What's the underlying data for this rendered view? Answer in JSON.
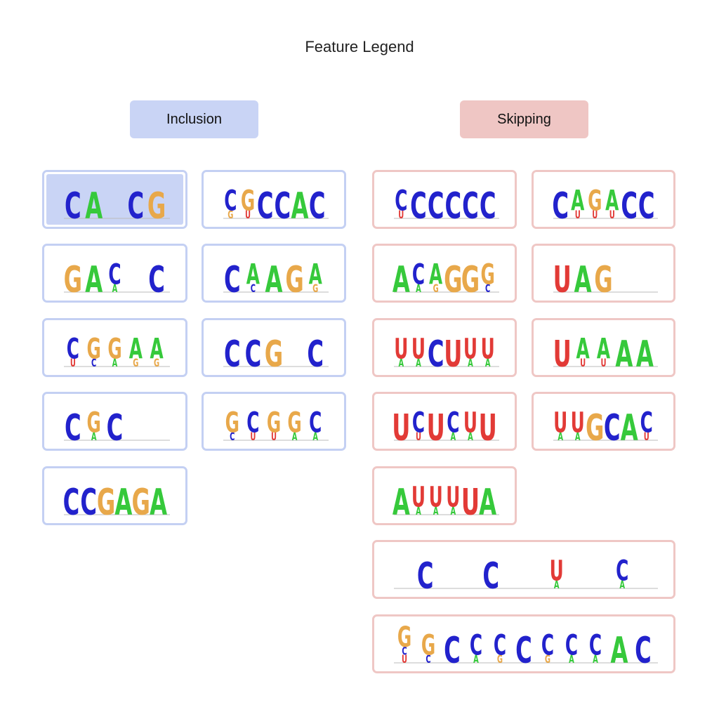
{
  "title": "Feature Legend",
  "groups": {
    "inclusion": {
      "label": "Inclusion",
      "header_color": "#c9d4f5",
      "border_color": "#c4d0f3",
      "selected_fill": "#c9d4f5"
    },
    "skipping": {
      "label": "Skipping",
      "header_color": "#efc6c4",
      "border_color": "#efc7c5",
      "selected_fill": "#efc6c4"
    }
  },
  "nucleotide_colors": {
    "A": "#36c93b",
    "C": "#2222cc",
    "G": "#e8a84a",
    "U": "#e23a36"
  },
  "motif_cards": [
    {
      "name": "inclusion-motif-1",
      "group": "inclusion",
      "selected": true,
      "positions": [
        [
          "C"
        ],
        [
          "A"
        ],
        [],
        [
          "C"
        ],
        [
          "G"
        ]
      ]
    },
    {
      "name": "inclusion-motif-2",
      "group": "inclusion",
      "selected": false,
      "positions": [
        [
          "C",
          "G"
        ],
        [
          "G",
          "U"
        ],
        [
          "C"
        ],
        [
          "C"
        ],
        [
          "A"
        ],
        [
          "C"
        ]
      ]
    },
    {
      "name": "inclusion-motif-3",
      "group": "inclusion",
      "selected": false,
      "positions": [
        [
          "G"
        ],
        [
          "A"
        ],
        [
          "C",
          "A"
        ],
        [],
        [
          "C"
        ]
      ]
    },
    {
      "name": "inclusion-motif-4",
      "group": "inclusion",
      "selected": false,
      "positions": [
        [
          "C"
        ],
        [
          "A",
          "C"
        ],
        [
          "A"
        ],
        [
          "G"
        ],
        [
          "A",
          "G"
        ]
      ]
    },
    {
      "name": "inclusion-motif-5",
      "group": "inclusion",
      "selected": false,
      "positions": [
        [
          "C",
          "U"
        ],
        [
          "G",
          "C"
        ],
        [
          "G",
          "A"
        ],
        [
          "A",
          "G"
        ],
        [
          "A",
          "G"
        ]
      ]
    },
    {
      "name": "inclusion-motif-6",
      "group": "inclusion",
      "selected": false,
      "positions": [
        [
          "C"
        ],
        [
          "C"
        ],
        [
          "G"
        ],
        [],
        [
          "C"
        ]
      ]
    },
    {
      "name": "inclusion-motif-7",
      "group": "inclusion",
      "selected": false,
      "positions": [
        [
          "C"
        ],
        [
          "G",
          "A"
        ],
        [
          "C"
        ],
        [],
        []
      ]
    },
    {
      "name": "inclusion-motif-8",
      "group": "inclusion",
      "selected": false,
      "positions": [
        [
          "G",
          "C"
        ],
        [
          "C",
          "U"
        ],
        [
          "G",
          "U"
        ],
        [
          "G",
          "A"
        ],
        [
          "C",
          "A"
        ]
      ]
    },
    {
      "name": "inclusion-motif-9",
      "group": "inclusion",
      "selected": false,
      "positions": [
        [
          "C"
        ],
        [
          "C"
        ],
        [
          "G"
        ],
        [
          "A"
        ],
        [
          "G"
        ],
        [
          "A"
        ]
      ]
    },
    {
      "name": "skipping-motif-1",
      "group": "skipping",
      "selected": false,
      "positions": [
        [
          "C",
          "U"
        ],
        [
          "C"
        ],
        [
          "C"
        ],
        [
          "C"
        ],
        [
          "C"
        ],
        [
          "C"
        ]
      ]
    },
    {
      "name": "skipping-motif-2",
      "group": "skipping",
      "selected": false,
      "positions": [
        [
          "C"
        ],
        [
          "A",
          "U"
        ],
        [
          "G",
          "U"
        ],
        [
          "A",
          "U"
        ],
        [
          "C"
        ],
        [
          "C"
        ]
      ]
    },
    {
      "name": "skipping-motif-3",
      "group": "skipping",
      "selected": false,
      "positions": [
        [
          "A"
        ],
        [
          "C",
          "A"
        ],
        [
          "A",
          "G"
        ],
        [
          "G"
        ],
        [
          "G"
        ],
        [
          "G",
          "C"
        ]
      ]
    },
    {
      "name": "skipping-motif-4",
      "group": "skipping",
      "selected": false,
      "positions": [
        [
          "U"
        ],
        [
          "A"
        ],
        [
          "G"
        ],
        [],
        []
      ]
    },
    {
      "name": "skipping-motif-5",
      "group": "skipping",
      "selected": false,
      "positions": [
        [
          "U",
          "A"
        ],
        [
          "U",
          "A"
        ],
        [
          "C"
        ],
        [
          "U"
        ],
        [
          "U",
          "A"
        ],
        [
          "U",
          "A"
        ]
      ]
    },
    {
      "name": "skipping-motif-6",
      "group": "skipping",
      "selected": false,
      "positions": [
        [
          "U"
        ],
        [
          "A",
          "U"
        ],
        [
          "A",
          "U"
        ],
        [
          "A"
        ],
        [
          "A"
        ]
      ]
    },
    {
      "name": "skipping-motif-7",
      "group": "skipping",
      "selected": false,
      "positions": [
        [
          "U"
        ],
        [
          "C",
          "U"
        ],
        [
          "U"
        ],
        [
          "C",
          "A"
        ],
        [
          "U",
          "A"
        ],
        [
          "U"
        ]
      ]
    },
    {
      "name": "skipping-motif-8",
      "group": "skipping",
      "selected": false,
      "positions": [
        [
          "U",
          "A"
        ],
        [
          "U",
          "A"
        ],
        [
          "G"
        ],
        [
          "C"
        ],
        [
          "A"
        ],
        [
          "C",
          "U"
        ]
      ]
    },
    {
      "name": "skipping-motif-9",
      "group": "skipping",
      "selected": false,
      "positions": [
        [
          "A"
        ],
        [
          "U",
          "A"
        ],
        [
          "U",
          "A"
        ],
        [
          "U",
          "A"
        ],
        [
          "U"
        ],
        [
          "A"
        ]
      ]
    },
    {
      "name": "skipping-motif-10",
      "group": "skipping",
      "selected": false,
      "positions": [
        [
          "C"
        ],
        [
          "C"
        ],
        [
          "U",
          "A"
        ],
        [
          "C",
          "A"
        ]
      ]
    },
    {
      "name": "skipping-motif-11",
      "group": "skipping",
      "selected": false,
      "positions": [
        [
          "G",
          "C",
          "U"
        ],
        [
          "G",
          "C"
        ],
        [
          "C"
        ],
        [
          "C",
          "A"
        ],
        [
          "C",
          "G"
        ],
        [
          "C"
        ],
        [
          "C",
          "G"
        ],
        [
          "C",
          "A"
        ],
        [
          "C",
          "A"
        ],
        [
          "A"
        ],
        [
          "C"
        ]
      ]
    }
  ]
}
